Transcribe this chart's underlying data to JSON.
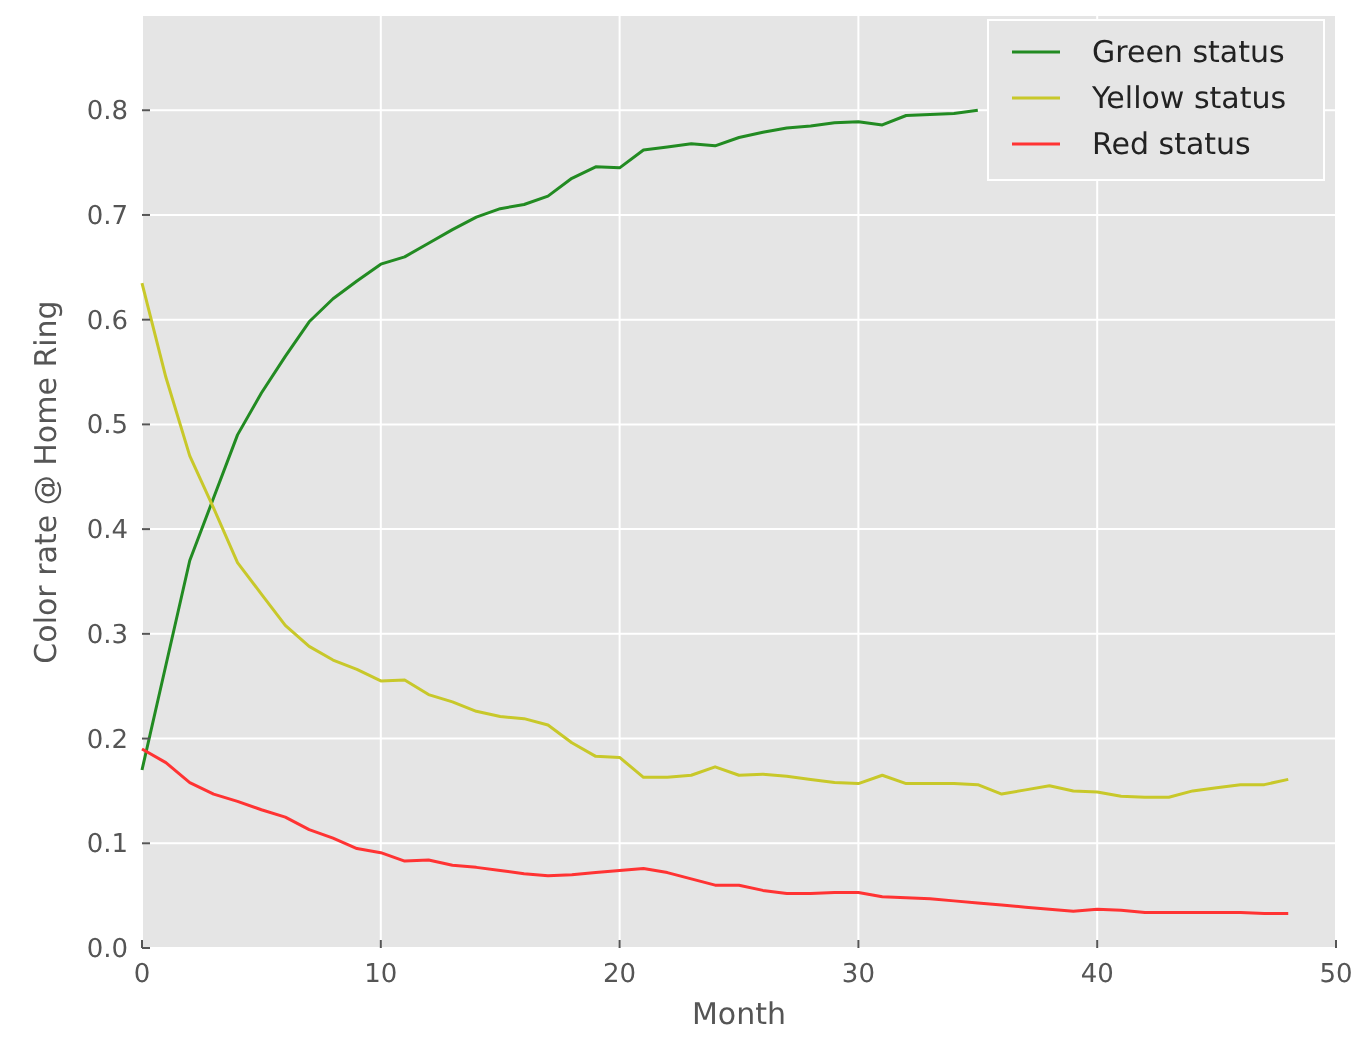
{
  "chart_data": {
    "type": "line",
    "xlabel": "Month",
    "ylabel": "Color rate @ Home Ring",
    "x": [
      0,
      1,
      2,
      3,
      4,
      5,
      6,
      7,
      8,
      9,
      10,
      11,
      12,
      13,
      14,
      15,
      16,
      17,
      18,
      19,
      20,
      21,
      22,
      23,
      24,
      25,
      26,
      27,
      28,
      29,
      30,
      31,
      32,
      33,
      34,
      35,
      36,
      37,
      38,
      39,
      40,
      41,
      42,
      43,
      44,
      45,
      46,
      47,
      48
    ],
    "series": [
      {
        "name": "Green status",
        "color": "#228b22",
        "values": [
          0.17,
          0.27,
          0.37,
          0.43,
          0.49,
          0.53,
          0.565,
          0.598,
          0.62,
          0.637,
          0.653,
          0.66,
          0.673,
          0.686,
          0.698,
          0.706,
          0.71,
          0.718,
          0.735,
          0.746,
          0.745,
          0.762,
          0.765,
          0.768,
          0.766,
          0.774,
          0.779,
          0.783,
          0.785,
          0.788,
          0.789,
          0.786,
          0.795,
          0.796,
          0.797,
          0.8,
          null,
          null,
          null,
          null,
          null,
          null,
          null,
          null,
          null,
          null,
          null,
          null,
          null
        ]
      },
      {
        "name": "Yellow status",
        "color": "#c8c82a",
        "values": [
          0.635,
          0.545,
          0.47,
          0.42,
          0.368,
          0.338,
          0.308,
          0.288,
          0.275,
          0.266,
          0.255,
          0.256,
          0.242,
          0.235,
          0.226,
          0.221,
          0.219,
          0.213,
          0.196,
          0.183,
          0.182,
          0.163,
          0.163,
          0.165,
          0.173,
          0.165,
          0.166,
          0.164,
          0.161,
          0.158,
          0.157,
          0.165,
          0.157,
          0.157,
          0.157,
          0.156,
          0.147,
          0.151,
          0.155,
          0.15,
          0.149,
          0.145,
          0.144,
          0.144,
          0.15,
          0.153,
          0.156,
          0.156,
          0.161
        ]
      },
      {
        "name": "Red status",
        "color": "#ff3333",
        "values": [
          0.19,
          0.177,
          0.158,
          0.147,
          0.14,
          0.132,
          0.125,
          0.113,
          0.105,
          0.095,
          0.091,
          0.083,
          0.084,
          0.079,
          0.077,
          0.074,
          0.071,
          0.069,
          0.07,
          0.072,
          0.074,
          0.076,
          0.072,
          0.066,
          0.06,
          0.06,
          0.055,
          0.052,
          0.052,
          0.053,
          0.053,
          0.049,
          0.048,
          0.047,
          0.045,
          0.043,
          0.041,
          0.039,
          0.037,
          0.035,
          0.037,
          0.036,
          0.034,
          0.034,
          0.034,
          0.034,
          0.034,
          0.033,
          0.033
        ]
      }
    ],
    "xlim": [
      0,
      50
    ],
    "xticks": [
      0,
      10,
      20,
      30,
      40,
      50
    ],
    "ylim": [
      0,
      0.89
    ],
    "yticks": [
      {
        "value": 0,
        "label": "0.0"
      },
      {
        "value": 0.1,
        "label": "0.1"
      },
      {
        "value": 0.2,
        "label": "0.2"
      },
      {
        "value": 0.3,
        "label": "0.3"
      },
      {
        "value": 0.4,
        "label": "0.4"
      },
      {
        "value": 0.5,
        "label": "0.5"
      },
      {
        "value": 0.6,
        "label": "0.6"
      },
      {
        "value": 0.7,
        "label": "0.7"
      },
      {
        "value": 0.8,
        "label": "0.8"
      }
    ],
    "grid": true,
    "legend": "top right"
  }
}
